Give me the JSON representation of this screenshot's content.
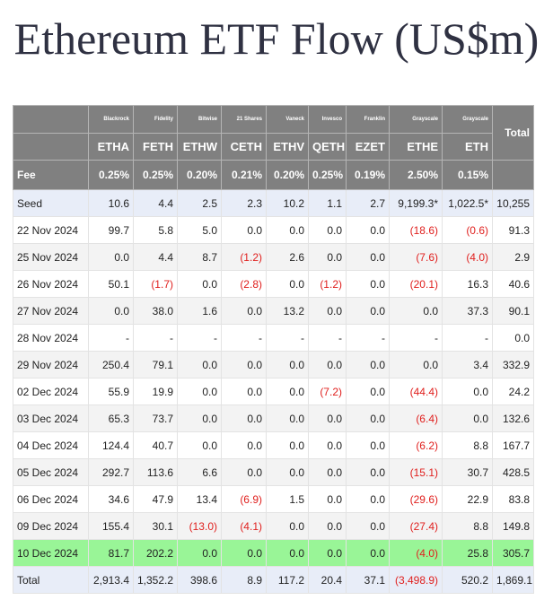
{
  "header": {
    "title": "Ethereum ETF Flow (US$m)"
  },
  "table": {
    "total_header": "Total",
    "issuers": [
      "Blackrock",
      "Fidelity",
      "Bitwise",
      "21 Shares",
      "Vaneck",
      "Invesco",
      "Franklin",
      "Grayscale",
      "Grayscale"
    ],
    "tickers": [
      "ETHA",
      "FETH",
      "ETHW",
      "CETH",
      "ETHV",
      "QETH",
      "EZET",
      "ETHE",
      "ETH"
    ],
    "fee_label": "Fee",
    "fees": [
      "0.25%",
      "0.25%",
      "0.20%",
      "0.21%",
      "0.20%",
      "0.25%",
      "0.19%",
      "2.50%",
      "0.15%"
    ],
    "rows": [
      {
        "label": "Seed",
        "cells": [
          "10.6",
          "4.4",
          "2.5",
          "2.3",
          "10.2",
          "1.1",
          "2.7",
          "9,199.3*",
          "1,022.5*",
          "10,255"
        ]
      },
      {
        "label": "22 Nov 2024",
        "cells": [
          "99.7",
          "5.8",
          "5.0",
          "0.0",
          "0.0",
          "0.0",
          "0.0",
          "(18.6)",
          "(0.6)",
          "91.3"
        ]
      },
      {
        "label": "25 Nov 2024",
        "cells": [
          "0.0",
          "4.4",
          "8.7",
          "(1.2)",
          "2.6",
          "0.0",
          "0.0",
          "(7.6)",
          "(4.0)",
          "2.9"
        ]
      },
      {
        "label": "26 Nov 2024",
        "cells": [
          "50.1",
          "(1.7)",
          "0.0",
          "(2.8)",
          "0.0",
          "(1.2)",
          "0.0",
          "(20.1)",
          "16.3",
          "40.6"
        ]
      },
      {
        "label": "27 Nov 2024",
        "cells": [
          "0.0",
          "38.0",
          "1.6",
          "0.0",
          "13.2",
          "0.0",
          "0.0",
          "0.0",
          "37.3",
          "90.1"
        ]
      },
      {
        "label": "28 Nov 2024",
        "cells": [
          "-",
          "-",
          "-",
          "-",
          "-",
          "-",
          "-",
          "-",
          "-",
          "0.0"
        ]
      },
      {
        "label": "29 Nov 2024",
        "cells": [
          "250.4",
          "79.1",
          "0.0",
          "0.0",
          "0.0",
          "0.0",
          "0.0",
          "0.0",
          "3.4",
          "332.9"
        ]
      },
      {
        "label": "02 Dec 2024",
        "cells": [
          "55.9",
          "19.9",
          "0.0",
          "0.0",
          "0.0",
          "(7.2)",
          "0.0",
          "(44.4)",
          "0.0",
          "24.2"
        ]
      },
      {
        "label": "03 Dec 2024",
        "cells": [
          "65.3",
          "73.7",
          "0.0",
          "0.0",
          "0.0",
          "0.0",
          "0.0",
          "(6.4)",
          "0.0",
          "132.6"
        ]
      },
      {
        "label": "04 Dec 2024",
        "cells": [
          "124.4",
          "40.7",
          "0.0",
          "0.0",
          "0.0",
          "0.0",
          "0.0",
          "(6.2)",
          "8.8",
          "167.7"
        ]
      },
      {
        "label": "05 Dec 2024",
        "cells": [
          "292.7",
          "113.6",
          "6.6",
          "0.0",
          "0.0",
          "0.0",
          "0.0",
          "(15.1)",
          "30.7",
          "428.5"
        ]
      },
      {
        "label": "06 Dec 2024",
        "cells": [
          "34.6",
          "47.9",
          "13.4",
          "(6.9)",
          "1.5",
          "0.0",
          "0.0",
          "(29.6)",
          "22.9",
          "83.8"
        ]
      },
      {
        "label": "09 Dec 2024",
        "cells": [
          "155.4",
          "30.1",
          "(13.0)",
          "(4.1)",
          "0.0",
          "0.0",
          "0.0",
          "(27.4)",
          "8.8",
          "149.8"
        ]
      },
      {
        "label": "10 Dec 2024",
        "highlight": true,
        "cells": [
          "81.7",
          "202.2",
          "0.0",
          "0.0",
          "0.0",
          "0.0",
          "0.0",
          "(4.0)",
          "25.8",
          "305.7"
        ]
      },
      {
        "label": "Total",
        "cells": [
          "2,913.4",
          "1,352.2",
          "398.6",
          "8.9",
          "117.2",
          "20.4",
          "37.1",
          "(3,498.9)",
          "520.2",
          "1,869.1"
        ]
      }
    ]
  }
}
